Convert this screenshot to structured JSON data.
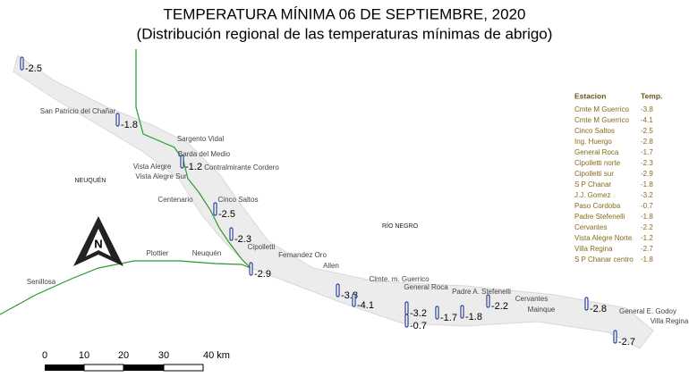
{
  "header": {
    "title": "TEMPERATURA MÍNIMA 06 DE SEPTIEMBRE, 2020",
    "subtitle": "(Distribución regional de las temperaturas mínimas de abrigo)"
  },
  "places": [
    "San Patricio del Chañar",
    "Sargento Vidal",
    "Barda del Medio",
    "Vista Alegre",
    "Contralmirante Cordero",
    "Vista Alegre Sur",
    "Centenario",
    "Cinco Saltos",
    "Cipolletti",
    "Fernandez Oro",
    "Plottier",
    "Neuquén",
    "Allen",
    "Senillosa",
    "Clmte. m. Guerrico",
    "General Roca",
    "Padre A. Stefenelli",
    "Cervantes",
    "Mainque",
    "General E. Godoy",
    "Villa Regina"
  ],
  "regions": [
    "NEUQUÉN",
    "RÍO NEGRO"
  ],
  "readings": [
    "-2.5",
    "-1.8",
    "-1.2",
    "-2.5",
    "-2.3",
    "-2.9",
    "-3.8",
    "-4.1",
    "-3.2",
    "-0.7",
    "-1.7",
    "-1.8",
    "-2.2",
    "-2.8",
    "-2.7"
  ],
  "table": {
    "header": [
      "Estacion",
      "Temp."
    ],
    "rows": [
      [
        "Cmte M Guerrico",
        "-3.8"
      ],
      [
        "Cmte M Guerrico",
        "-4.1"
      ],
      [
        "Cinco Saltos",
        "-2.5"
      ],
      [
        "Ing. Huergo",
        "-2.8"
      ],
      [
        "General Roca",
        "-1.7"
      ],
      [
        "Cipolletti norte",
        "-2.3"
      ],
      [
        "Cipolletti sur",
        "-2.9"
      ],
      [
        "S P Chanar",
        "-1.8"
      ],
      [
        "J.J. Gomez",
        "-3.2"
      ],
      [
        "Paso Cordoba",
        "-0.7"
      ],
      [
        "Padre Stefenelli",
        "-1.8"
      ],
      [
        "Cervantes",
        "-2.2"
      ],
      [
        "Vista Alegre Norte",
        "-1.2"
      ],
      [
        "Villa Regina",
        "-2.7"
      ],
      [
        "S P Chanar centro",
        "-1.8"
      ]
    ]
  },
  "scale": [
    "0",
    "10",
    "20",
    "30",
    "40 km"
  ]
}
